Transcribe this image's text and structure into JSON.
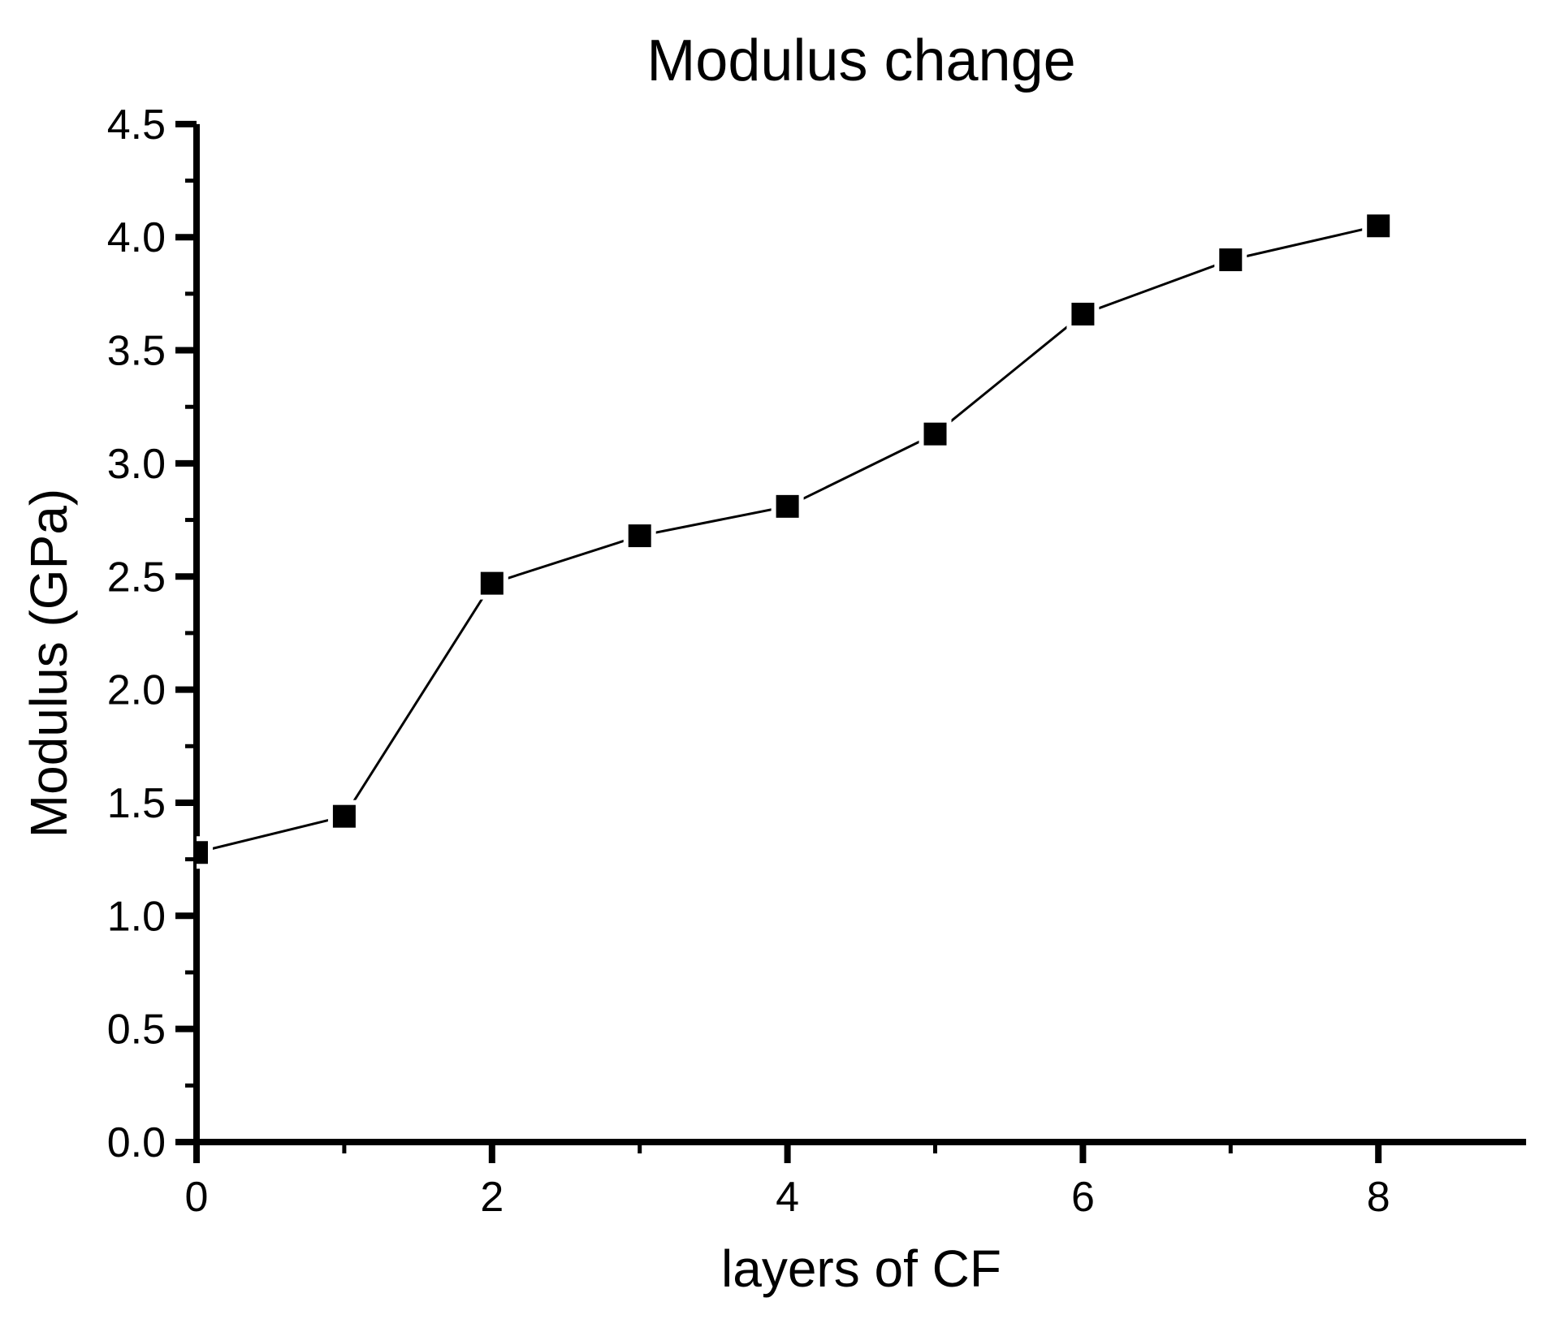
{
  "chart_data": {
    "type": "line",
    "title": "Modulus change",
    "xlabel": "layers of CF",
    "ylabel": "Modulus (GPa)",
    "x": [
      0,
      1,
      2,
      3,
      4,
      5,
      6,
      7,
      8
    ],
    "series": [
      {
        "name": "Modulus",
        "values": [
          1.28,
          1.44,
          2.47,
          2.68,
          2.81,
          3.13,
          3.66,
          3.9,
          4.05
        ]
      }
    ],
    "xlim": [
      0,
      9
    ],
    "ylim": [
      0,
      4.5
    ],
    "x_major_ticks": [
      0,
      2,
      4,
      6,
      8
    ],
    "x_minor_ticks": [
      1,
      3,
      5,
      7
    ],
    "x_tick_labels": [
      "0",
      "2",
      "4",
      "6",
      "8"
    ],
    "y_major_ticks": [
      0.0,
      0.5,
      1.0,
      1.5,
      2.0,
      2.5,
      3.0,
      3.5,
      4.0,
      4.5
    ],
    "y_minor_ticks": [
      0.25,
      0.75,
      1.25,
      1.75,
      2.25,
      2.75,
      3.25,
      3.75,
      4.25
    ],
    "y_tick_labels": [
      "0.0",
      "0.5",
      "1.0",
      "1.5",
      "2.0",
      "2.5",
      "3.0",
      "3.5",
      "4.0",
      "4.5"
    ],
    "grid": false,
    "legend_position": "none",
    "marker": "square",
    "colors": {
      "line": "#000000",
      "marker": "#000000",
      "axis": "#000000",
      "text": "#000000",
      "background": "#ffffff"
    }
  }
}
